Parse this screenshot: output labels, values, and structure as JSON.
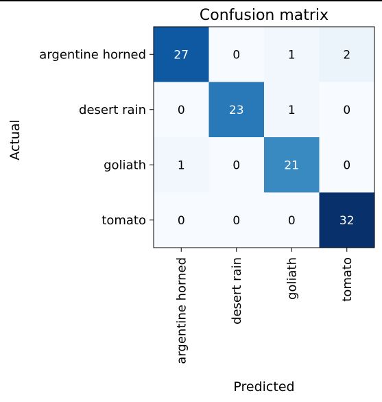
{
  "chart_data": {
    "type": "heatmap",
    "title": "Confusion matrix",
    "xlabel": "Predicted",
    "ylabel": "Actual",
    "row_labels": [
      "argentine horned",
      "desert rain",
      "goliath",
      "tomato"
    ],
    "col_labels": [
      "argentine horned",
      "desert rain",
      "goliath",
      "tomato"
    ],
    "values": [
      [
        27,
        0,
        1,
        2
      ],
      [
        0,
        23,
        1,
        0
      ],
      [
        1,
        0,
        21,
        0
      ],
      [
        0,
        0,
        0,
        32
      ]
    ],
    "colormap": "Blues",
    "vmin": 0,
    "vmax": 32
  }
}
